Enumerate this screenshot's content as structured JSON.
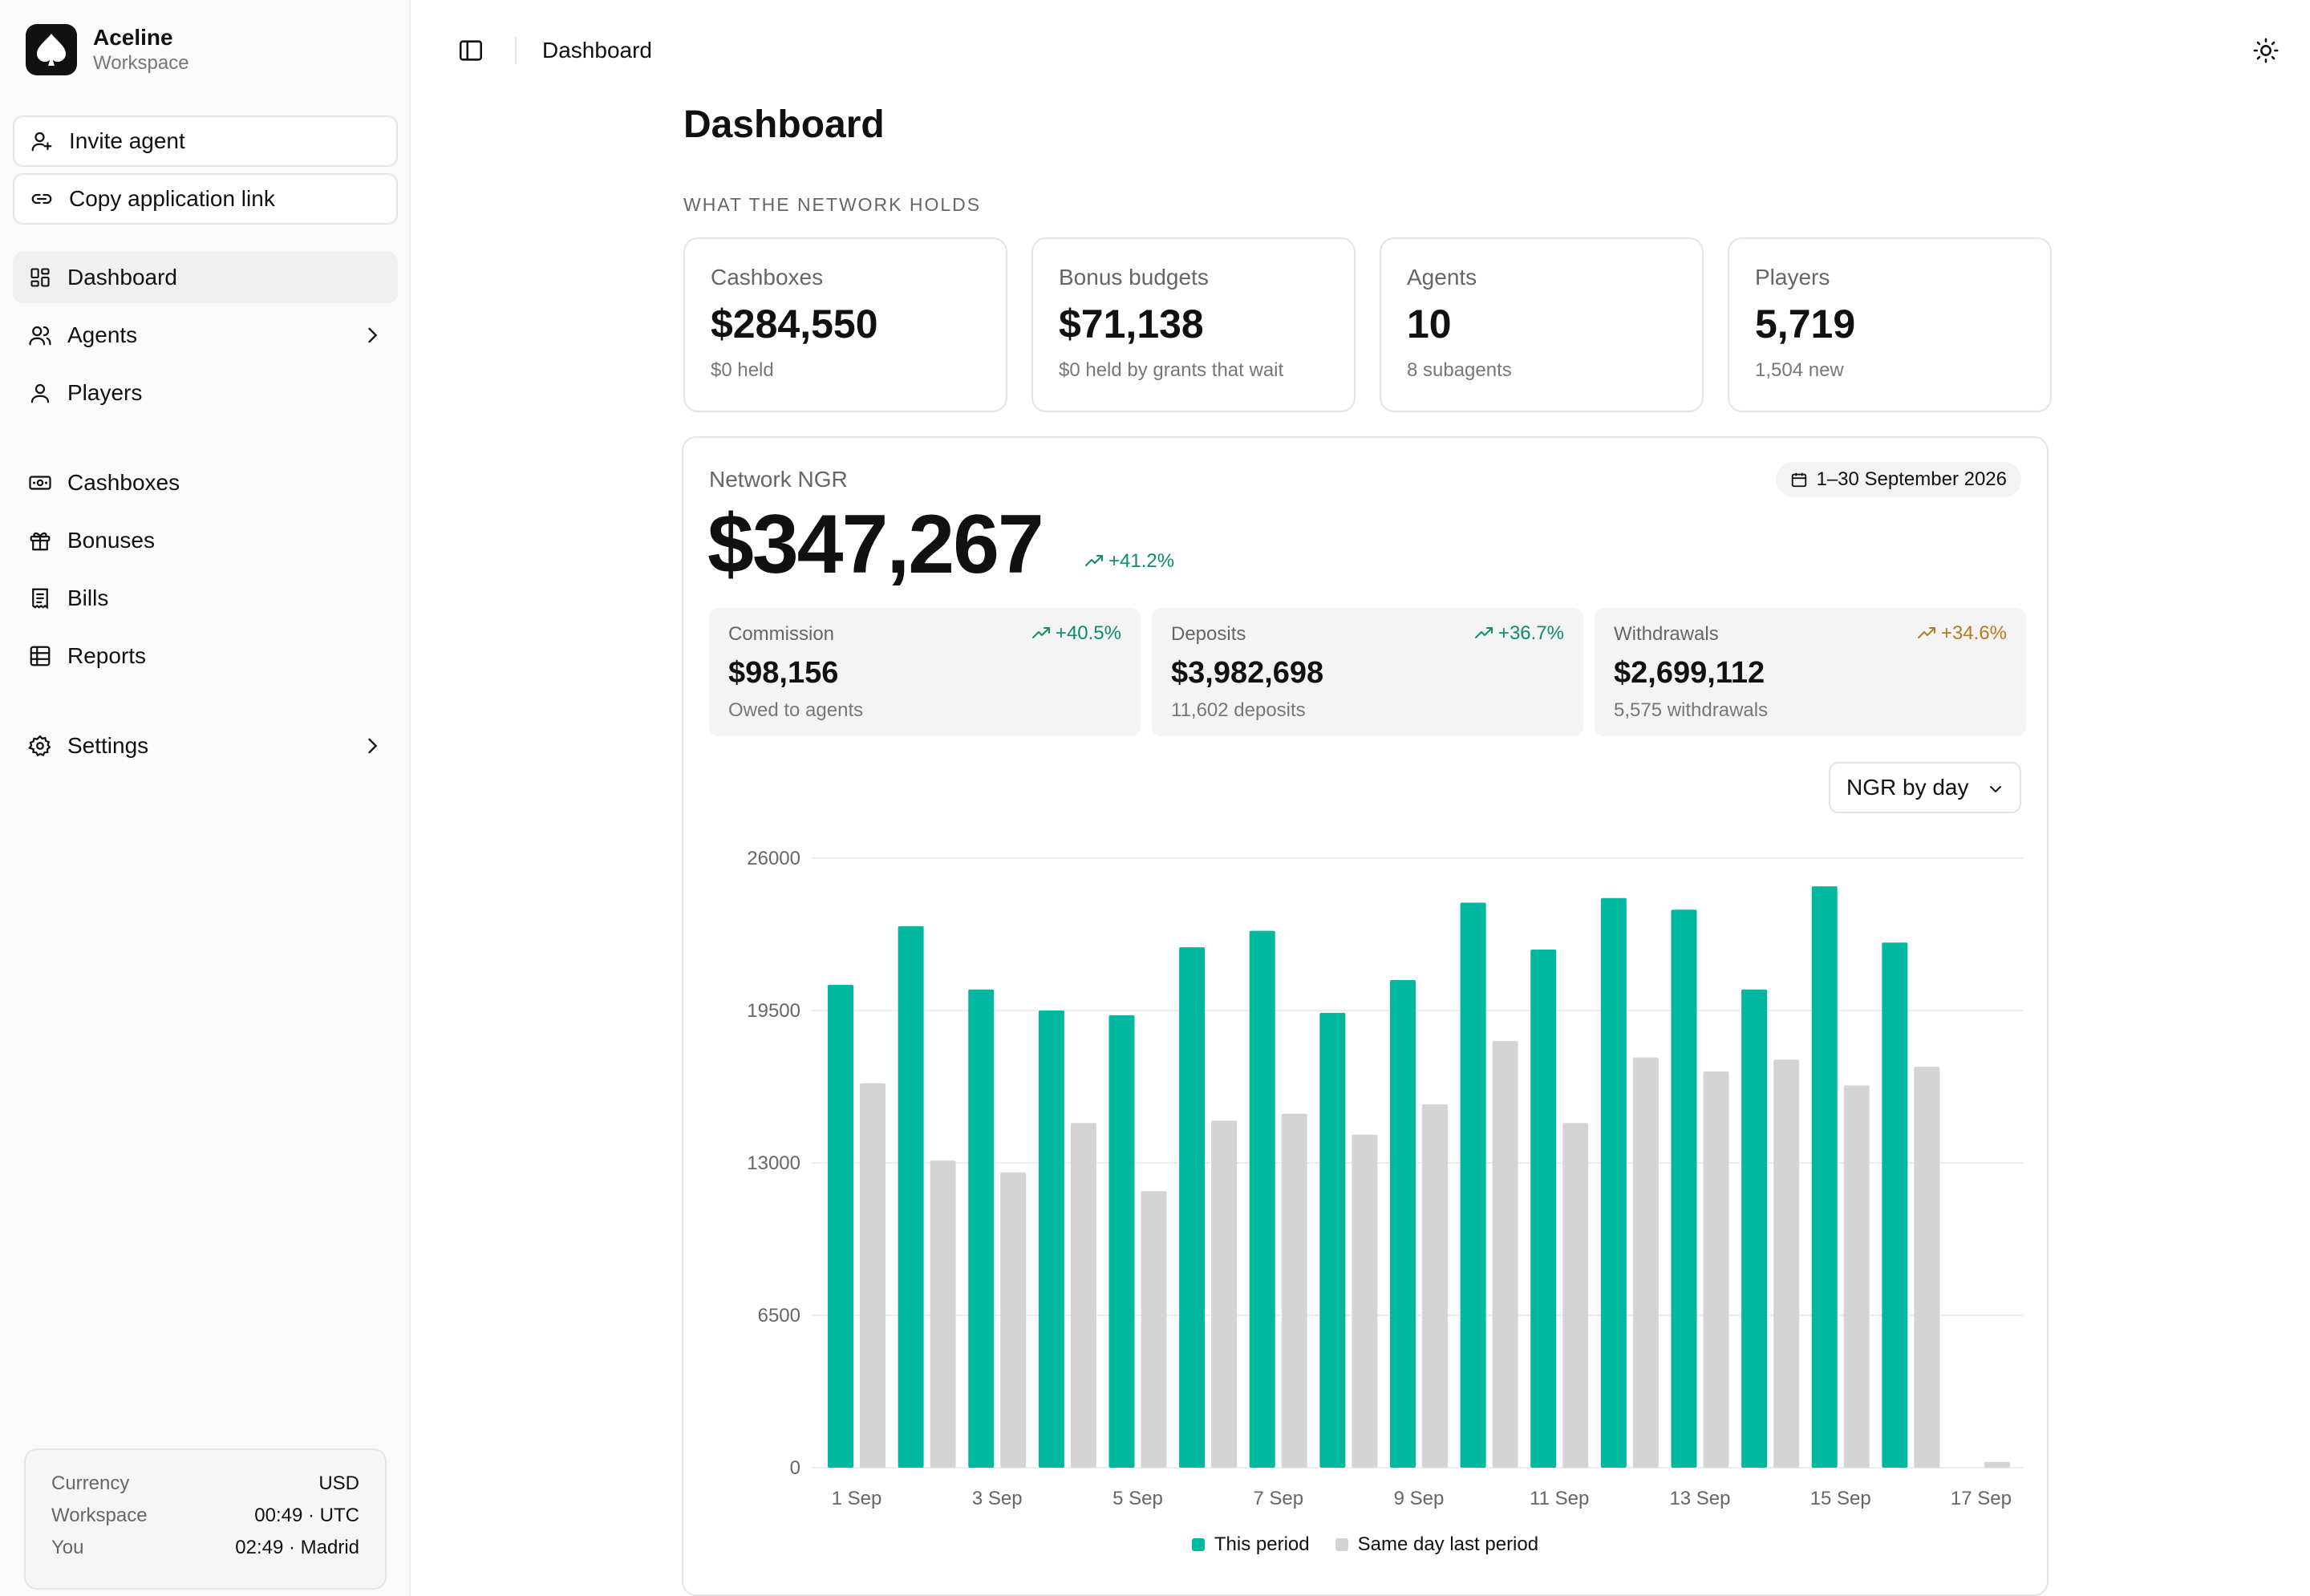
{
  "brand": {
    "name": "Aceline",
    "subtitle": "Workspace"
  },
  "actions": {
    "invite": "Invite agent",
    "copy_link": "Copy application link"
  },
  "nav": {
    "dashboard": "Dashboard",
    "agents": "Agents",
    "players": "Players",
    "cashboxes": "Cashboxes",
    "bonuses": "Bonuses",
    "bills": "Bills",
    "reports": "Reports",
    "settings": "Settings"
  },
  "footer": {
    "currency_label": "Currency",
    "currency_value": "USD",
    "workspace_label": "Workspace",
    "workspace_value": "00:49 · UTC",
    "you_label": "You",
    "you_value": "02:49 · Madrid"
  },
  "topbar": {
    "breadcrumb": "Dashboard"
  },
  "page": {
    "title": "Dashboard",
    "section_label": "WHAT THE NETWORK HOLDS"
  },
  "kpis": [
    {
      "label": "Cashboxes",
      "value": "$284,550",
      "sub": "$0 held"
    },
    {
      "label": "Bonus budgets",
      "value": "$71,138",
      "sub": "$0 held by grants that wait"
    },
    {
      "label": "Agents",
      "value": "10",
      "sub": "8 subagents"
    },
    {
      "label": "Players",
      "value": "5,719",
      "sub": "1,504 new"
    }
  ],
  "ngr": {
    "label": "Network NGR",
    "value": "$347,267",
    "change": "+41.2%",
    "date_range": "1–30 September 2026"
  },
  "metrics": [
    {
      "label": "Commission",
      "value": "$98,156",
      "sub": "Owed to agents",
      "change": "+40.5%",
      "change_color": "#0f8a6a"
    },
    {
      "label": "Deposits",
      "value": "$3,982,698",
      "sub": "11,602 deposits",
      "change": "+36.7%",
      "change_color": "#0f8a6a"
    },
    {
      "label": "Withdrawals",
      "value": "$2,699,112",
      "sub": "5,575 withdrawals",
      "change": "+34.6%",
      "change_color": "#b7791f"
    }
  ],
  "chart_select": {
    "value": "NGR by day"
  },
  "colors": {
    "accent": "#00b8a0",
    "comparison": "#d4d4d4",
    "positive": "#0f8a6a",
    "warning": "#b7791f"
  },
  "chart_data": {
    "type": "bar",
    "categories": [
      "1 Sep",
      "2 Sep",
      "3 Sep",
      "4 Sep",
      "5 Sep",
      "6 Sep",
      "7 Sep",
      "8 Sep",
      "9 Sep",
      "10 Sep",
      "11 Sep",
      "12 Sep",
      "13 Sep",
      "14 Sep",
      "15 Sep",
      "16 Sep",
      "17 Sep"
    ],
    "tick_labels": [
      "1 Sep",
      "3 Sep",
      "5 Sep",
      "7 Sep",
      "9 Sep",
      "11 Sep",
      "13 Sep",
      "15 Sep",
      "17 Sep"
    ],
    "series": [
      {
        "name": "This period",
        "color": "#00b8a0",
        "values": [
          20600,
          23100,
          20400,
          19500,
          19300,
          22200,
          22900,
          19400,
          20800,
          24100,
          22100,
          24300,
          23800,
          20400,
          24800,
          22400,
          0
        ]
      },
      {
        "name": "Same day last period",
        "color": "#d4d4d4",
        "values": [
          16400,
          13100,
          12600,
          14700,
          11800,
          14800,
          15100,
          14200,
          15500,
          18200,
          14700,
          17500,
          16900,
          17400,
          16300,
          17100,
          250
        ]
      }
    ],
    "yticks": [
      0,
      6500,
      13000,
      19500,
      26000
    ],
    "ylim": [
      0,
      26000
    ],
    "grid": true,
    "legend": "bottom"
  }
}
